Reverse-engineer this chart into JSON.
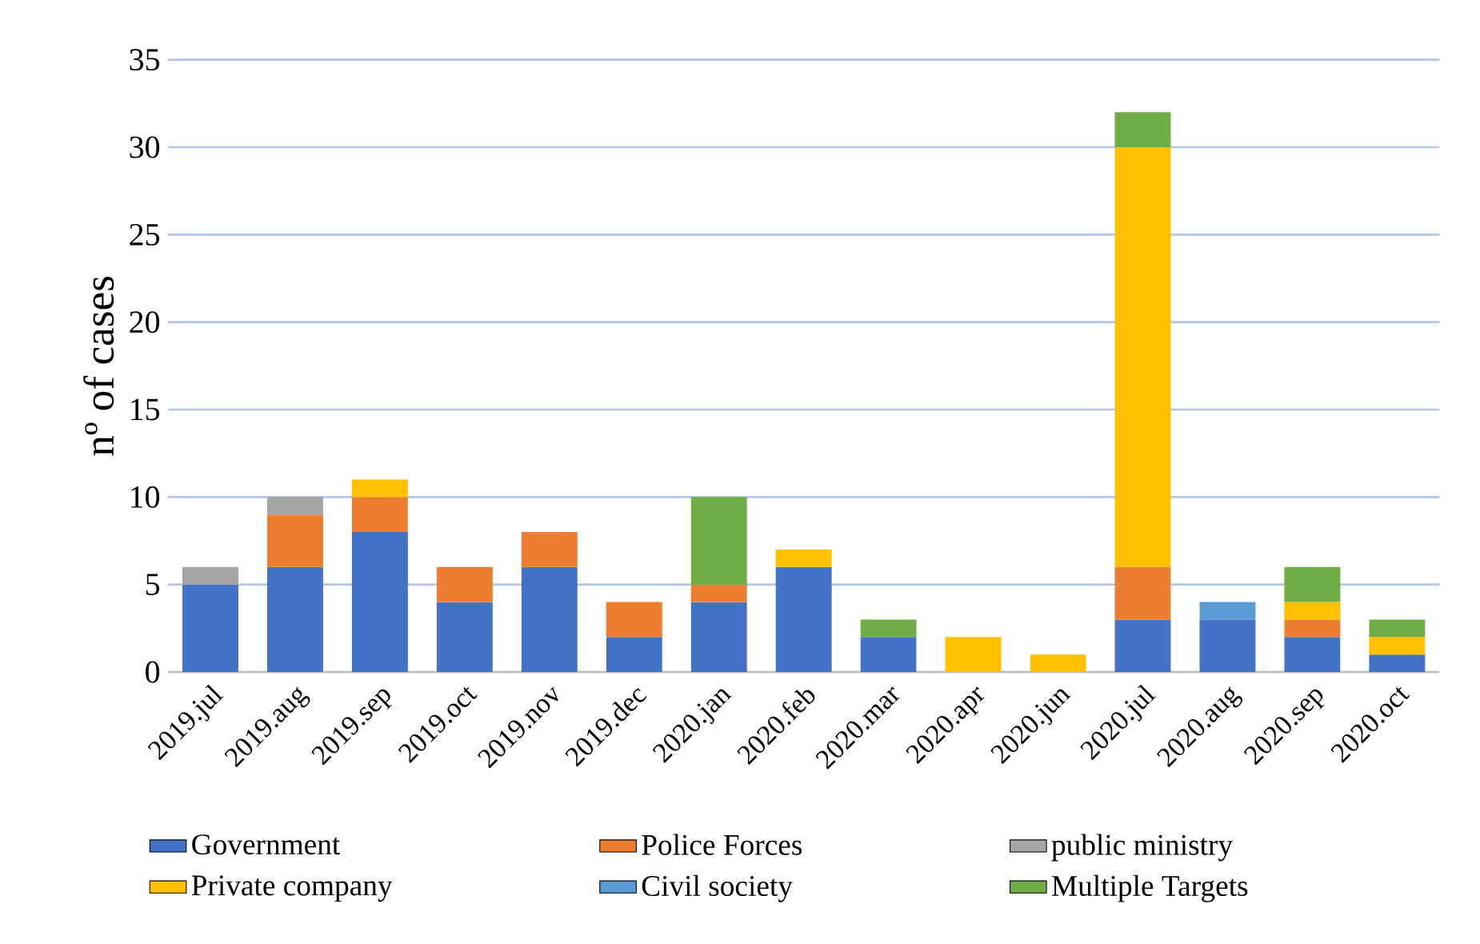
{
  "chart_data": {
    "type": "bar",
    "stacked": true,
    "ylabel": "nº of cases",
    "categories": [
      "2019.jul",
      "2019.aug",
      "2019.sep",
      "2019.oct",
      "2019.nov",
      "2019.dec",
      "2020.jan",
      "2020.feb",
      "2020.mar",
      "2020.apr",
      "2020.jun",
      "2020.jul",
      "2020.aug",
      "2020.sep",
      "2020.oct"
    ],
    "series": [
      {
        "name": "Government",
        "color": "#4472c4",
        "values": [
          5,
          6,
          8,
          4,
          6,
          2,
          4,
          6,
          2,
          0,
          0,
          3,
          3,
          2,
          1
        ]
      },
      {
        "name": "Police Forces",
        "color": "#ed7d31",
        "values": [
          0,
          3,
          2,
          2,
          2,
          2,
          1,
          0,
          0,
          0,
          0,
          3,
          0,
          1,
          0
        ]
      },
      {
        "name": "public ministry",
        "color": "#a5a5a5",
        "values": [
          1,
          1,
          0,
          0,
          0,
          0,
          0,
          0,
          0,
          0,
          0,
          0,
          0,
          0,
          0
        ]
      },
      {
        "name": "Private company",
        "color": "#ffc000",
        "values": [
          0,
          0,
          1,
          0,
          0,
          0,
          0,
          1,
          0,
          2,
          1,
          24,
          0,
          1,
          1
        ]
      },
      {
        "name": "Civil society",
        "color": "#5b9bd5",
        "values": [
          0,
          0,
          0,
          0,
          0,
          0,
          0,
          0,
          0,
          0,
          0,
          0,
          1,
          0,
          0
        ]
      },
      {
        "name": "Multiple Targets",
        "color": "#70ad47",
        "values": [
          0,
          0,
          0,
          0,
          0,
          0,
          5,
          0,
          1,
          0,
          0,
          2,
          0,
          2,
          1
        ]
      }
    ],
    "ylim": [
      0,
      35
    ],
    "yticks": [
      0,
      5,
      10,
      15,
      20,
      25,
      30,
      35
    ],
    "grid": "y",
    "legend": "bottom"
  }
}
